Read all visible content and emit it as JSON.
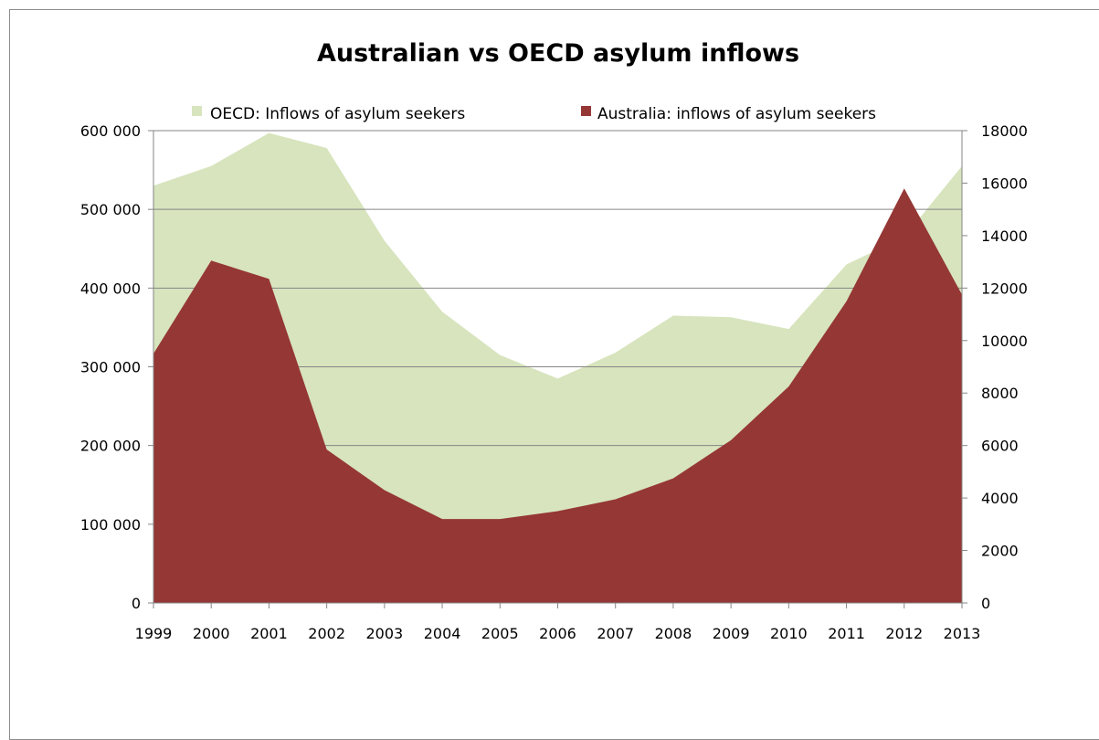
{
  "chart_data": {
    "type": "area",
    "title": "Australian vs OECD asylum inflows",
    "x": [
      "1999",
      "2000",
      "2001",
      "2002",
      "2003",
      "2004",
      "2005",
      "2006",
      "2007",
      "2008",
      "2009",
      "2010",
      "2011",
      "2012",
      "2013"
    ],
    "series": [
      {
        "name": "OECD: Inflows of asylum seekers",
        "axis": "left",
        "color": "#d7e4bd",
        "values": [
          530000,
          555000,
          597000,
          578000,
          460000,
          370000,
          315000,
          285000,
          318000,
          365000,
          363000,
          348000,
          430000,
          465000,
          555000
        ]
      },
      {
        "name": "Australia: inflows of asylum seekers",
        "axis": "right",
        "color": "#953735",
        "values": [
          9500,
          13050,
          12350,
          5850,
          4300,
          3200,
          3200,
          3500,
          3950,
          4750,
          6200,
          8250,
          11500,
          15800,
          11750
        ]
      }
    ],
    "y_left": {
      "ylim": [
        0,
        600000
      ],
      "ticks": [
        0,
        100000,
        200000,
        300000,
        400000,
        500000,
        600000
      ],
      "tick_labels": [
        "0",
        "100 000",
        "200 000",
        "300 000",
        "400 000",
        "500 000",
        "600 000"
      ]
    },
    "y_right": {
      "ylim": [
        0,
        18000
      ],
      "ticks": [
        0,
        2000,
        4000,
        6000,
        8000,
        10000,
        12000,
        14000,
        16000,
        18000
      ],
      "tick_labels": [
        "0",
        "2000",
        "4000",
        "6000",
        "8000",
        "10000",
        "12000",
        "14000",
        "16000",
        "18000"
      ]
    },
    "grid": true,
    "legend_position": "top"
  }
}
